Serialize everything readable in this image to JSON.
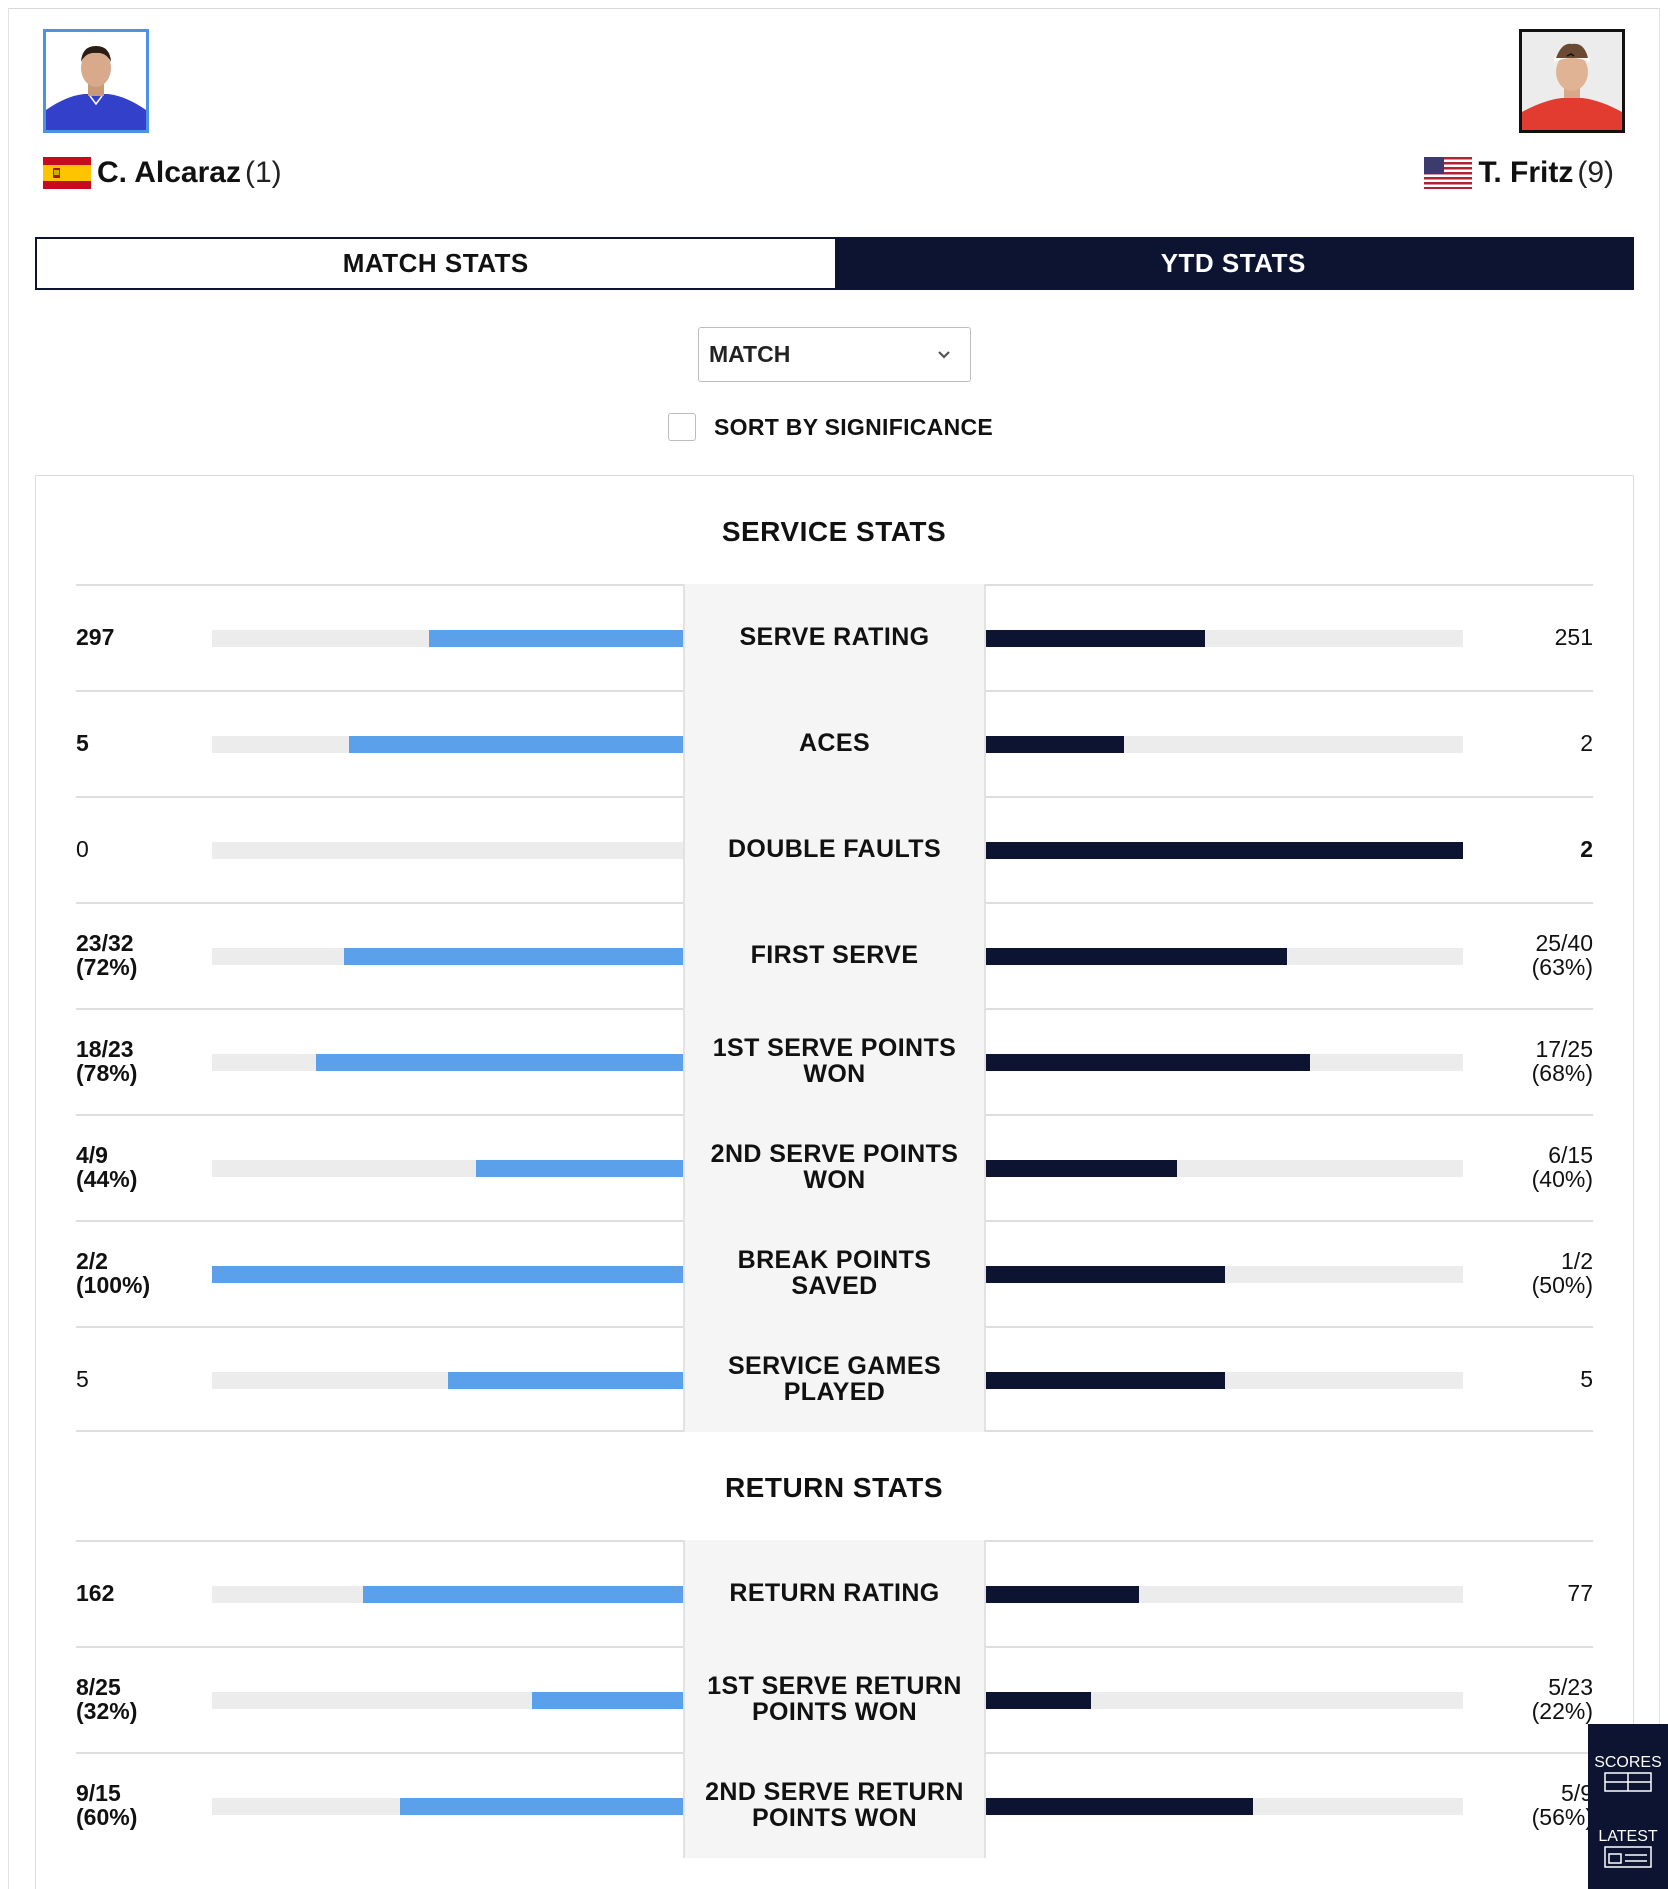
{
  "players": {
    "left": {
      "name": "C. Alcaraz",
      "seed": "(1)",
      "photo_icon": "player-photo-alcaraz",
      "flag_icon": "spain-flag-icon"
    },
    "right": {
      "name": "T. Fritz",
      "seed": "(9)",
      "photo_icon": "player-photo-fritz",
      "flag_icon": "usa-flag-icon"
    }
  },
  "tabs": {
    "match_label": "MATCH STATS",
    "ytd_label": "YTD STATS",
    "active": "ytd"
  },
  "filter": {
    "selected": "MATCH"
  },
  "sort": {
    "label": "SORT BY SIGNIFICANCE",
    "checked": false
  },
  "service": {
    "title": "SERVICE STATS",
    "rows": [
      {
        "label": "SERVE RATING",
        "left": "297",
        "left_sub": "",
        "right": "251",
        "right_sub": "",
        "left_bar": 0.54,
        "right_bar": 0.46,
        "bold": "left"
      },
      {
        "label": "ACES",
        "left": "5",
        "left_sub": "",
        "right": "2",
        "right_sub": "",
        "left_bar": 0.71,
        "right_bar": 0.29,
        "bold": "left"
      },
      {
        "label": "DOUBLE FAULTS",
        "left": "0",
        "left_sub": "",
        "right": "2",
        "right_sub": "",
        "left_bar": 0.0,
        "right_bar": 1.0,
        "bold": "right"
      },
      {
        "label": "FIRST SERVE",
        "left": "23/32",
        "left_sub": "(72%)",
        "right": "25/40",
        "right_sub": "(63%)",
        "left_bar": 0.72,
        "right_bar": 0.63,
        "bold": "left"
      },
      {
        "label": "1ST SERVE POINTS WON",
        "left": "18/23",
        "left_sub": "(78%)",
        "right": "17/25",
        "right_sub": "(68%)",
        "left_bar": 0.78,
        "right_bar": 0.68,
        "bold": "left"
      },
      {
        "label": "2ND SERVE POINTS WON",
        "left": "4/9",
        "left_sub": "(44%)",
        "right": "6/15",
        "right_sub": "(40%)",
        "left_bar": 0.44,
        "right_bar": 0.4,
        "bold": "left"
      },
      {
        "label": "BREAK POINTS SAVED",
        "left": "2/2",
        "left_sub": "(100%)",
        "right": "1/2",
        "right_sub": "(50%)",
        "left_bar": 1.0,
        "right_bar": 0.5,
        "bold": "left"
      },
      {
        "label": "SERVICE GAMES PLAYED",
        "left": "5",
        "left_sub": "",
        "right": "5",
        "right_sub": "",
        "left_bar": 0.5,
        "right_bar": 0.5,
        "bold": "none"
      }
    ]
  },
  "return": {
    "title": "RETURN STATS",
    "rows": [
      {
        "label": "RETURN RATING",
        "left": "162",
        "left_sub": "",
        "right": "77",
        "right_sub": "",
        "left_bar": 0.68,
        "right_bar": 0.32,
        "bold": "left"
      },
      {
        "label": "1ST SERVE RETURN POINTS WON",
        "left": "8/25",
        "left_sub": "(32%)",
        "right": "5/23",
        "right_sub": "(22%)",
        "left_bar": 0.32,
        "right_bar": 0.22,
        "bold": "left"
      },
      {
        "label": "2ND SERVE RETURN POINTS WON",
        "left": "9/15",
        "left_sub": "(60%)",
        "right": "5/9",
        "right_sub": "(56%)",
        "left_bar": 0.6,
        "right_bar": 0.56,
        "bold": "left"
      }
    ]
  },
  "side_widget": {
    "scores_label": "SCORES",
    "latest_label": "LATEST"
  },
  "colors": {
    "navy": "#0d1431",
    "blue": "#5ba0ea",
    "track": "#ececec"
  }
}
